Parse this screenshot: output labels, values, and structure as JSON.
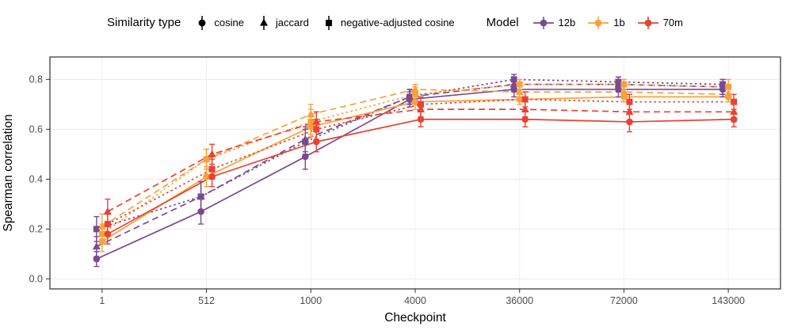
{
  "figure": {
    "legend": {
      "sim_title": "Similarity type",
      "sim_items": [
        {
          "label": "cosine",
          "marker": "circle"
        },
        {
          "label": "jaccard",
          "marker": "triangle"
        },
        {
          "label": "negative-adjusted cosine",
          "marker": "square"
        }
      ],
      "model_title": "Model",
      "model_items": [
        {
          "label": "12b",
          "color": "#7a4a90"
        },
        {
          "label": "1b",
          "color": "#f9a13a"
        },
        {
          "label": "70m",
          "color": "#eb4034"
        }
      ]
    }
  },
  "chart_data": {
    "type": "line",
    "title": "",
    "xlabel": "Checkpoint",
    "ylabel": "Spearman correlation",
    "x_ticks": [
      "1",
      "512",
      "1000",
      "4000",
      "36000",
      "72000",
      "143000"
    ],
    "y_ticks": [
      0.0,
      0.2,
      0.4,
      0.6,
      0.8
    ],
    "y_tick_labels": [
      "0.0",
      "0.2",
      "0.4",
      "0.6",
      "0.8"
    ],
    "ylim": [
      -0.04,
      0.89
    ],
    "grid": true,
    "legend_position": "top",
    "series": [
      {
        "model": "12b",
        "similarity": "cosine",
        "linetype": "solid",
        "marker": "circle",
        "color": "#7a4a90",
        "values": [
          0.08,
          0.27,
          0.49,
          0.72,
          0.76,
          0.76,
          0.76
        ],
        "errors": [
          0.03,
          0.05,
          0.05,
          0.03,
          0.03,
          0.03,
          0.03
        ]
      },
      {
        "model": "12b",
        "similarity": "jaccard",
        "linetype": "dashed",
        "marker": "triangle",
        "color": "#7a4a90",
        "values": [
          0.13,
          0.33,
          0.56,
          0.73,
          0.78,
          0.78,
          0.77
        ],
        "errors": [
          0.04,
          0.06,
          0.05,
          0.03,
          0.03,
          0.03,
          0.03
        ]
      },
      {
        "model": "12b",
        "similarity": "negative-adjusted cosine",
        "linetype": "dotted",
        "marker": "square",
        "color": "#7a4a90",
        "values": [
          0.2,
          0.33,
          0.55,
          0.73,
          0.8,
          0.79,
          0.78
        ],
        "errors": [
          0.05,
          0.06,
          0.05,
          0.03,
          0.02,
          0.02,
          0.02
        ]
      },
      {
        "model": "1b",
        "similarity": "cosine",
        "linetype": "solid",
        "marker": "circle",
        "color": "#f9a13a",
        "values": [
          0.15,
          0.41,
          0.61,
          0.71,
          0.72,
          0.73,
          0.73
        ],
        "errors": [
          0.04,
          0.04,
          0.04,
          0.03,
          0.02,
          0.02,
          0.02
        ]
      },
      {
        "model": "1b",
        "similarity": "jaccard",
        "linetype": "dashed",
        "marker": "triangle",
        "color": "#f9a13a",
        "values": [
          0.21,
          0.48,
          0.66,
          0.76,
          0.75,
          0.75,
          0.74
        ],
        "errors": [
          0.05,
          0.04,
          0.04,
          0.02,
          0.02,
          0.02,
          0.03
        ]
      },
      {
        "model": "1b",
        "similarity": "negative-adjusted cosine",
        "linetype": "dotted",
        "marker": "square",
        "color": "#f9a13a",
        "values": [
          0.18,
          0.48,
          0.63,
          0.74,
          0.78,
          0.78,
          0.77
        ],
        "errors": [
          0.04,
          0.04,
          0.05,
          0.03,
          0.02,
          0.02,
          0.03
        ]
      },
      {
        "model": "70m",
        "similarity": "cosine",
        "linetype": "solid",
        "marker": "circle",
        "color": "#eb4034",
        "values": [
          0.18,
          0.41,
          0.55,
          0.64,
          0.64,
          0.63,
          0.64
        ],
        "errors": [
          0.04,
          0.04,
          0.04,
          0.03,
          0.03,
          0.04,
          0.03
        ]
      },
      {
        "model": "70m",
        "similarity": "jaccard",
        "linetype": "dashed",
        "marker": "triangle",
        "color": "#eb4034",
        "values": [
          0.27,
          0.5,
          0.63,
          0.68,
          0.68,
          0.67,
          0.67
        ],
        "errors": [
          0.05,
          0.04,
          0.04,
          0.03,
          0.03,
          0.04,
          0.04
        ]
      },
      {
        "model": "70m",
        "similarity": "negative-adjusted cosine",
        "linetype": "dotted",
        "marker": "square",
        "color": "#eb4034",
        "values": [
          0.22,
          0.44,
          0.6,
          0.7,
          0.72,
          0.71,
          0.71
        ],
        "errors": [
          0.04,
          0.04,
          0.04,
          0.03,
          0.03,
          0.03,
          0.03
        ]
      }
    ]
  }
}
